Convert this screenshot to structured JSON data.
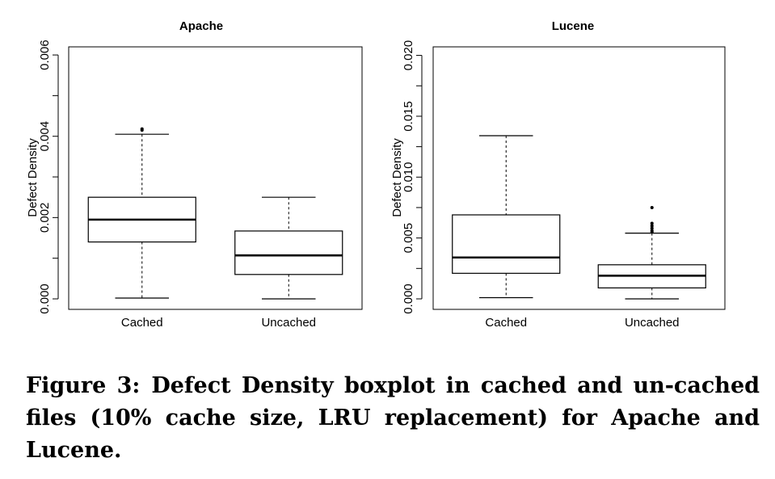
{
  "caption": {
    "label": "Figure 3:",
    "text": "Defect Density boxplot in cached and un-cached files (10% cache size, LRU replacement) for Apache and Lucene."
  },
  "chart_data": [
    {
      "type": "boxplot",
      "title": "Apache",
      "ylabel": "Defect Density",
      "ylim": [
        0,
        0.0062
      ],
      "yticks": [
        "0.000",
        "0.002",
        "0.004",
        "0.006"
      ],
      "categories": [
        "Cached",
        "Uncached"
      ],
      "boxes": [
        {
          "category": "Cached",
          "whisker_low": 2e-05,
          "q1": 0.0014,
          "median": 0.00195,
          "q3": 0.0025,
          "whisker_high": 0.00405,
          "outliers": [
            0.00415,
            0.00418
          ]
        },
        {
          "category": "Uncached",
          "whisker_low": 0.0,
          "q1": 0.0006,
          "median": 0.00107,
          "q3": 0.00167,
          "whisker_high": 0.0025,
          "outliers": []
        }
      ]
    },
    {
      "type": "boxplot",
      "title": "Lucene",
      "ylabel": "Defect Density",
      "ylim": [
        0,
        0.0207
      ],
      "yticks": [
        "0.000",
        "0.005",
        "0.010",
        "0.015",
        "0.020"
      ],
      "categories": [
        "Cached",
        "Uncached"
      ],
      "boxes": [
        {
          "category": "Cached",
          "whisker_low": 0.0001,
          "q1": 0.0021,
          "median": 0.0034,
          "q3": 0.0069,
          "whisker_high": 0.0134,
          "outliers": []
        },
        {
          "category": "Uncached",
          "whisker_low": 0.0,
          "q1": 0.0009,
          "median": 0.0019,
          "q3": 0.0028,
          "whisker_high": 0.0054,
          "outliers": [
            0.0055,
            0.0056,
            0.0058,
            0.006,
            0.0062,
            0.0075
          ]
        }
      ]
    }
  ]
}
